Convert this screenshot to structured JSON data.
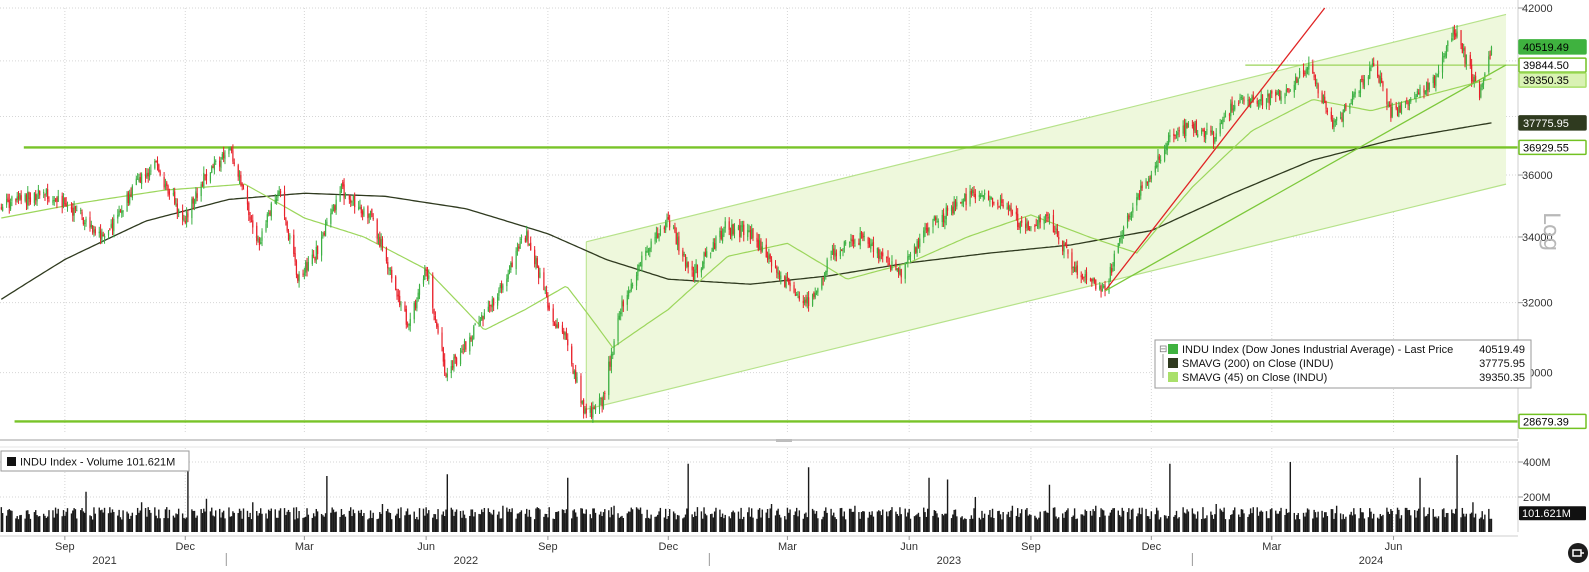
{
  "chart_data": {
    "type": "candlestick",
    "y_scale_word": "Log",
    "price_panel": {
      "y_ticks": [
        30000,
        32000,
        34000,
        36000,
        38000,
        40000,
        42000
      ],
      "y_tick_labels": [
        "30000",
        "32000",
        "34000",
        "36000",
        "",
        "",
        "42000"
      ],
      "ylim": [
        28400,
        42000
      ],
      "series": [
        {
          "key": "price",
          "name": "INDU Index (Dow Jones Industrial Average) - Last Price",
          "last": "40519.49",
          "color": "#3fb23f"
        },
        {
          "key": "sma200",
          "name": "SMAVG (200)  on Close (INDU)",
          "last": "37775.95",
          "color": "#2f3a1f"
        },
        {
          "key": "sma45",
          "name": "SMAVG (45)  on Close (INDU)",
          "last": "39350.35",
          "color": "#a9e06a"
        }
      ],
      "price_anchors": [
        [
          "2021-07-15",
          35000
        ],
        [
          "2021-08-15",
          35400
        ],
        [
          "2021-09-10",
          34800
        ],
        [
          "2021-10-01",
          33900
        ],
        [
          "2021-10-25",
          35700
        ],
        [
          "2021-11-08",
          36400
        ],
        [
          "2021-11-30",
          34500
        ],
        [
          "2021-12-15",
          35900
        ],
        [
          "2022-01-04",
          36800
        ],
        [
          "2022-01-25",
          33800
        ],
        [
          "2022-02-10",
          35500
        ],
        [
          "2022-02-24",
          32700
        ],
        [
          "2022-03-10",
          33500
        ],
        [
          "2022-03-29",
          35500
        ],
        [
          "2022-04-20",
          34700
        ],
        [
          "2022-05-05",
          32900
        ],
        [
          "2022-05-19",
          31300
        ],
        [
          "2022-06-01",
          33100
        ],
        [
          "2022-06-16",
          29900
        ],
        [
          "2022-07-05",
          31000
        ],
        [
          "2022-07-28",
          32500
        ],
        [
          "2022-08-16",
          34100
        ],
        [
          "2022-09-06",
          31400
        ],
        [
          "2022-09-13",
          31100
        ],
        [
          "2022-09-30",
          28750
        ],
        [
          "2022-10-12",
          29200
        ],
        [
          "2022-10-26",
          31800
        ],
        [
          "2022-11-15",
          33600
        ],
        [
          "2022-12-01",
          34500
        ],
        [
          "2022-12-19",
          32800
        ],
        [
          "2023-01-13",
          34300
        ],
        [
          "2023-02-01",
          34100
        ],
        [
          "2023-02-24",
          32800
        ],
        [
          "2023-03-15",
          31900
        ],
        [
          "2023-04-05",
          33500
        ],
        [
          "2023-04-28",
          34000
        ],
        [
          "2023-05-25",
          32800
        ],
        [
          "2023-06-15",
          34300
        ],
        [
          "2023-07-20",
          35400
        ],
        [
          "2023-08-10",
          35100
        ],
        [
          "2023-08-25",
          34300
        ],
        [
          "2023-09-15",
          34600
        ],
        [
          "2023-10-04",
          33000
        ],
        [
          "2023-10-27",
          32400
        ],
        [
          "2023-11-15",
          34800
        ],
        [
          "2023-12-13",
          37100
        ],
        [
          "2023-12-29",
          37700
        ],
        [
          "2024-01-17",
          37300
        ],
        [
          "2024-02-01",
          38500
        ],
        [
          "2024-02-21",
          38600
        ],
        [
          "2024-03-08",
          38700
        ],
        [
          "2024-03-28",
          39800
        ],
        [
          "2024-04-17",
          37700
        ],
        [
          "2024-05-03",
          38700
        ],
        [
          "2024-05-17",
          40000
        ],
        [
          "2024-05-30",
          38100
        ],
        [
          "2024-06-17",
          38700
        ],
        [
          "2024-07-03",
          39300
        ],
        [
          "2024-07-17",
          41200
        ],
        [
          "2024-08-05",
          38700
        ],
        [
          "2024-08-14",
          40519.49
        ]
      ],
      "sma200_anchors": [
        [
          "2021-07-15",
          32100
        ],
        [
          "2021-09-01",
          33300
        ],
        [
          "2021-11-01",
          34500
        ],
        [
          "2022-01-03",
          35200
        ],
        [
          "2022-03-01",
          35400
        ],
        [
          "2022-05-01",
          35300
        ],
        [
          "2022-07-01",
          34900
        ],
        [
          "2022-09-01",
          34100
        ],
        [
          "2022-10-15",
          33300
        ],
        [
          "2022-12-01",
          32700
        ],
        [
          "2023-02-01",
          32550
        ],
        [
          "2023-04-01",
          32800
        ],
        [
          "2023-06-01",
          33200
        ],
        [
          "2023-08-01",
          33500
        ],
        [
          "2023-10-01",
          33750
        ],
        [
          "2023-12-01",
          34200
        ],
        [
          "2024-02-01",
          35400
        ],
        [
          "2024-04-01",
          36500
        ],
        [
          "2024-06-01",
          37200
        ],
        [
          "2024-08-14",
          37775.95
        ]
      ],
      "sma45_anchors": [
        [
          "2021-07-15",
          34600
        ],
        [
          "2021-09-15",
          35100
        ],
        [
          "2021-11-15",
          35500
        ],
        [
          "2022-01-15",
          35700
        ],
        [
          "2022-03-01",
          34600
        ],
        [
          "2022-04-15",
          34000
        ],
        [
          "2022-06-01",
          33000
        ],
        [
          "2022-07-15",
          31200
        ],
        [
          "2022-08-15",
          31800
        ],
        [
          "2022-09-15",
          32500
        ],
        [
          "2022-10-20",
          30700
        ],
        [
          "2022-12-01",
          31800
        ],
        [
          "2023-01-15",
          33400
        ],
        [
          "2023-03-01",
          33800
        ],
        [
          "2023-04-15",
          32700
        ],
        [
          "2023-06-01",
          33200
        ],
        [
          "2023-07-15",
          34000
        ],
        [
          "2023-09-01",
          34700
        ],
        [
          "2023-10-15",
          34000
        ],
        [
          "2023-11-20",
          33500
        ],
        [
          "2024-01-01",
          35600
        ],
        [
          "2024-02-15",
          37500
        ],
        [
          "2024-04-01",
          38600
        ],
        [
          "2024-05-15",
          38200
        ],
        [
          "2024-07-01",
          38800
        ],
        [
          "2024-08-14",
          39350.35
        ]
      ],
      "horizontal_lines": [
        {
          "value": 36929.55,
          "label": "36929.55",
          "start": "2021-08-01",
          "end": "2024-08-25"
        },
        {
          "value": 28679.39,
          "label": "28679.39",
          "start": "2021-07-25",
          "end": "2024-08-25"
        },
        {
          "value": 39844.5,
          "label": "39844.50",
          "start": "2024-02-10",
          "end": "2024-08-25"
        }
      ],
      "right_tags": [
        {
          "value": 40519.49,
          "label": "40519.49",
          "style": "green"
        },
        {
          "value": 39844.5,
          "label": "39844.50",
          "style": "outline"
        },
        {
          "value": 39350.35,
          "label": "39350.35",
          "style": "light"
        },
        {
          "value": 37775.95,
          "label": "37775.95",
          "style": "dark"
        },
        {
          "value": 36929.55,
          "label": "36929.55",
          "style": "outline"
        },
        {
          "value": 28679.39,
          "label": "28679.39",
          "style": "outline"
        }
      ],
      "channel": {
        "upper": [
          [
            "2022-09-30",
            33850
          ],
          [
            "2024-08-25",
            41750
          ]
        ],
        "lower": [
          [
            "2022-09-30",
            29000
          ],
          [
            "2024-08-25",
            35700
          ]
        ]
      },
      "trend_lines": [
        {
          "color": "#e02424",
          "points": [
            [
              "2023-10-27",
              32350
            ],
            [
              "2024-04-10",
              42000
            ]
          ]
        },
        {
          "color": "#7cc83a",
          "points": [
            [
              "2023-10-27",
              32350
            ],
            [
              "2024-08-25",
              39850
            ]
          ]
        }
      ]
    },
    "volume_panel": {
      "title": "INDU Index - Volume 101.621M",
      "last_label": "101.621M",
      "y_ticks": [
        200,
        400
      ],
      "y_tick_labels": [
        "200M",
        "400M"
      ],
      "ylim": [
        0,
        480
      ],
      "base_value": 101.621,
      "spikes": [
        [
          "2021-09-17",
          230
        ],
        [
          "2021-10-29",
          170
        ],
        [
          "2021-12-03",
          350
        ],
        [
          "2021-12-17",
          190
        ],
        [
          "2022-01-21",
          170
        ],
        [
          "2022-03-18",
          320
        ],
        [
          "2022-04-29",
          160
        ],
        [
          "2022-06-17",
          330
        ],
        [
          "2022-07-29",
          150
        ],
        [
          "2022-09-16",
          310
        ],
        [
          "2022-10-21",
          150
        ],
        [
          "2022-12-16",
          390
        ],
        [
          "2023-02-17",
          160
        ],
        [
          "2023-03-17",
          370
        ],
        [
          "2023-04-21",
          150
        ],
        [
          "2023-06-16",
          310
        ],
        [
          "2023-06-30",
          300
        ],
        [
          "2023-07-21",
          200
        ],
        [
          "2023-08-18",
          150
        ],
        [
          "2023-09-15",
          270
        ],
        [
          "2023-10-20",
          150
        ],
        [
          "2023-12-15",
          390
        ],
        [
          "2024-01-19",
          160
        ],
        [
          "2024-03-15",
          400
        ],
        [
          "2024-04-19",
          150
        ],
        [
          "2024-06-21",
          310
        ],
        [
          "2024-07-19",
          440
        ],
        [
          "2024-07-31",
          170
        ]
      ]
    },
    "x_axis": {
      "start": "2021-07-14",
      "end": "2024-08-28",
      "month_ticks": [
        {
          "date": "2021-09-01",
          "label": "Sep"
        },
        {
          "date": "2021-12-01",
          "label": "Dec"
        },
        {
          "date": "2022-03-01",
          "label": "Mar"
        },
        {
          "date": "2022-06-01",
          "label": "Jun"
        },
        {
          "date": "2022-09-01",
          "label": "Sep"
        },
        {
          "date": "2022-12-01",
          "label": "Dec"
        },
        {
          "date": "2023-03-01",
          "label": "Mar"
        },
        {
          "date": "2023-06-01",
          "label": "Jun"
        },
        {
          "date": "2023-09-01",
          "label": "Sep"
        },
        {
          "date": "2023-12-01",
          "label": "Dec"
        },
        {
          "date": "2024-03-01",
          "label": "Mar"
        },
        {
          "date": "2024-06-01",
          "label": "Jun"
        }
      ],
      "year_labels": [
        {
          "date": "2021-10-01",
          "label": "2021"
        },
        {
          "date": "2022-07-01",
          "label": "2022"
        },
        {
          "date": "2023-07-01",
          "label": "2023"
        },
        {
          "date": "2024-05-15",
          "label": "2024"
        }
      ],
      "year_separators": [
        "2022-01-01",
        "2023-01-01",
        "2024-01-01"
      ]
    },
    "colors": {
      "up": "#3cb043",
      "down": "#e8202a",
      "channel_fill": "#eef8dc",
      "channel_line": "#b6e28a",
      "level_line": "#78c428",
      "grid": "#d6d6d6"
    }
  }
}
